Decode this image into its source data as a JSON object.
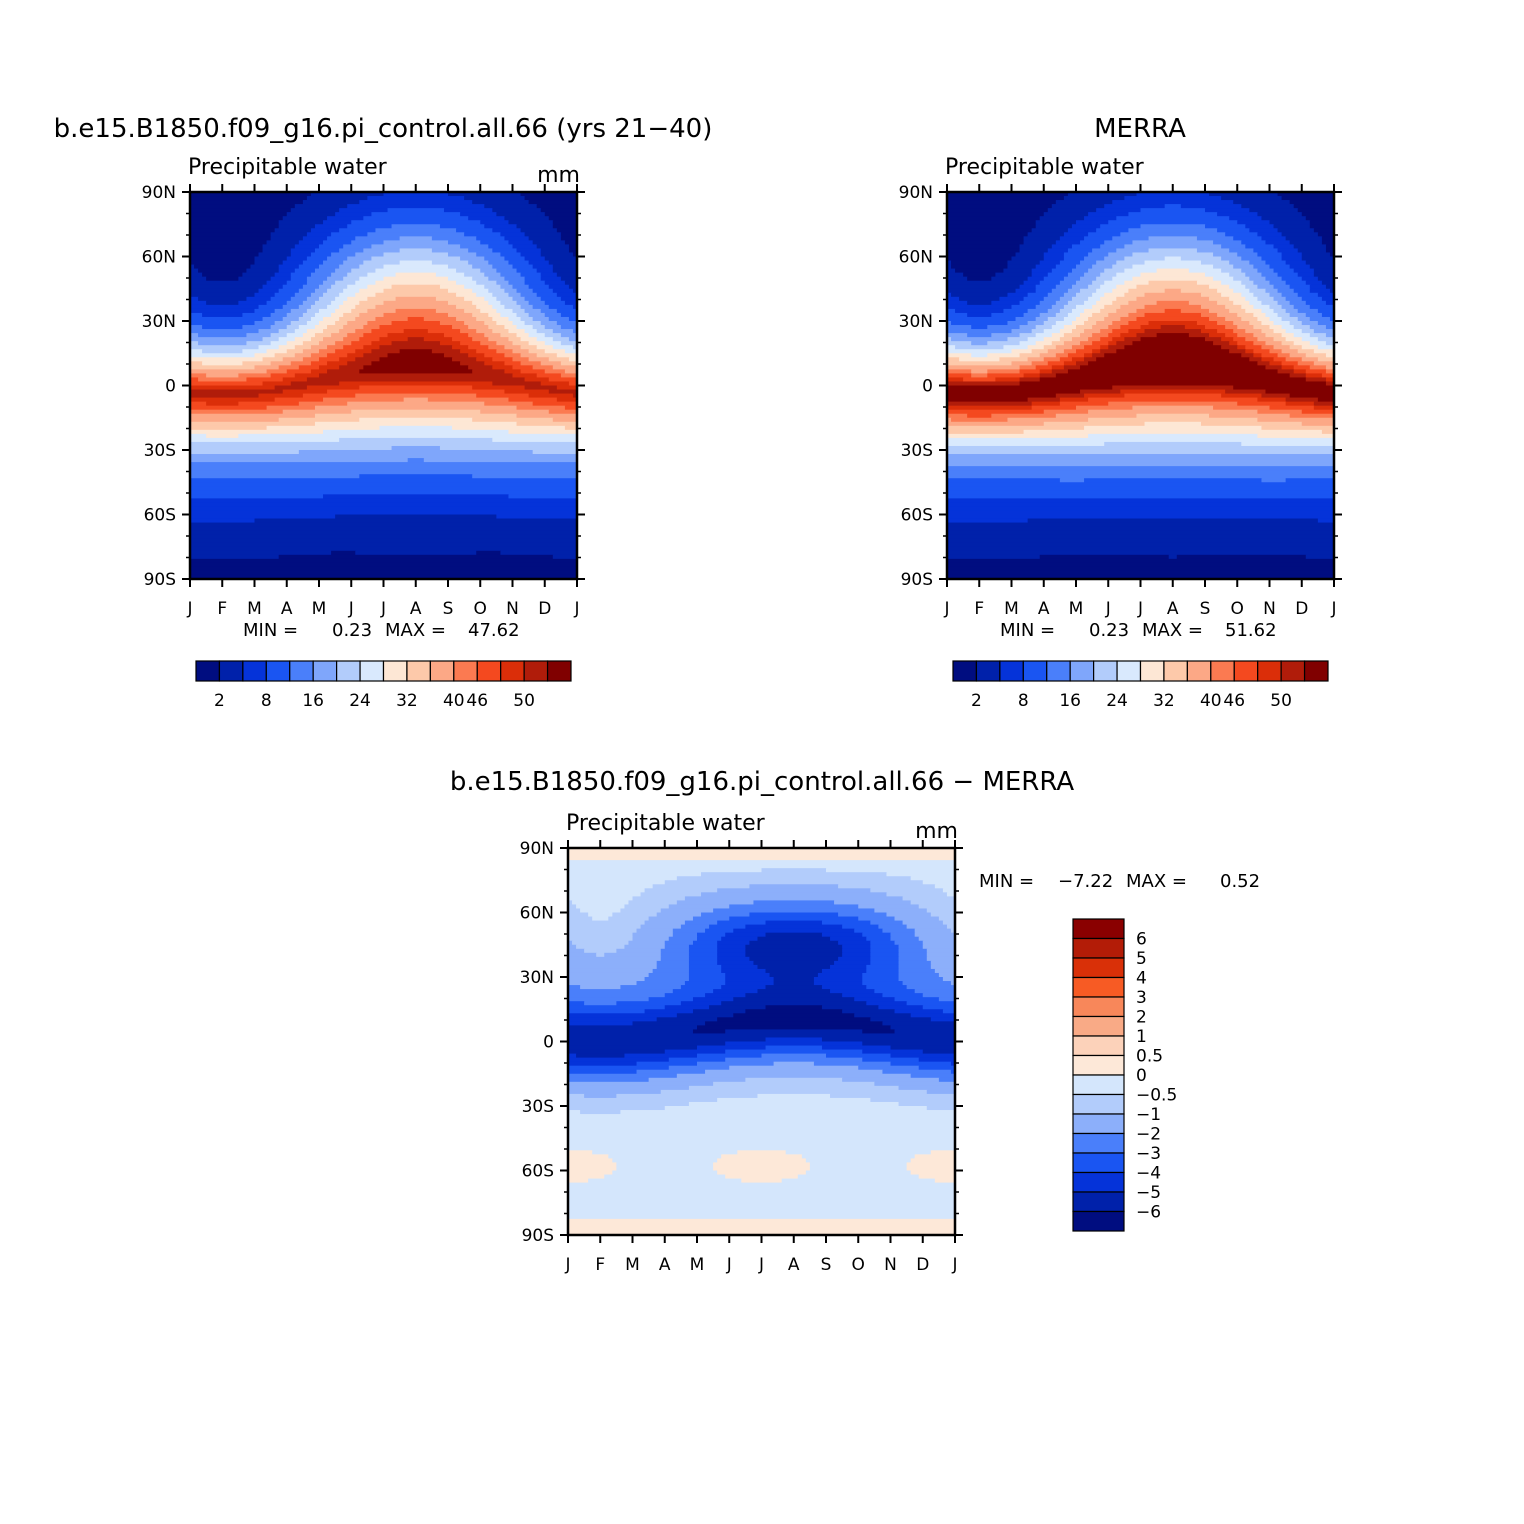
{
  "chart_data": [
    {
      "type": "heatmap",
      "title": "b.e15.B1850.f09_g16.pi_control.all.66 (yrs 21−40)",
      "subtitle": "Precipitable water",
      "units": "mm",
      "x_ticks": [
        "J",
        "F",
        "M",
        "A",
        "M",
        "J",
        "J",
        "A",
        "S",
        "O",
        "N",
        "D",
        "J"
      ],
      "y_ticks": [
        "90N",
        "60N",
        "30N",
        "0",
        "30S",
        "60S",
        "90S"
      ],
      "min_label": "MIN =",
      "min_value": "0.23",
      "max_label": "MAX =",
      "max_value": "47.62",
      "min": 0.23,
      "max": 47.62,
      "colorbar_labels": [
        "2",
        "8",
        "16",
        "24",
        "32",
        "40",
        "46",
        "50"
      ]
    },
    {
      "type": "heatmap",
      "title": "MERRA",
      "subtitle": "Precipitable water",
      "units": "",
      "x_ticks": [
        "J",
        "F",
        "M",
        "A",
        "M",
        "J",
        "J",
        "A",
        "S",
        "O",
        "N",
        "D",
        "J"
      ],
      "y_ticks": [
        "90N",
        "60N",
        "30N",
        "0",
        "30S",
        "60S",
        "90S"
      ],
      "min_label": "MIN =",
      "min_value": "0.23",
      "max_label": "MAX =",
      "max_value": "51.62",
      "min": 0.23,
      "max": 51.62,
      "colorbar_labels": [
        "2",
        "8",
        "16",
        "24",
        "32",
        "40",
        "46",
        "50"
      ]
    },
    {
      "type": "heatmap",
      "title": "b.e15.B1850.f09_g16.pi_control.all.66 − MERRA",
      "subtitle": "Precipitable water",
      "units": "mm",
      "x_ticks": [
        "J",
        "F",
        "M",
        "A",
        "M",
        "J",
        "J",
        "A",
        "S",
        "O",
        "N",
        "D",
        "J"
      ],
      "y_ticks": [
        "90N",
        "60N",
        "30N",
        "0",
        "30S",
        "60S",
        "90S"
      ],
      "min_label": "MIN =",
      "min_value": "−7.22",
      "max_label": "MAX =",
      "max_value": "0.52",
      "min": -7.22,
      "max": 0.52,
      "colorbar_labels": [
        "6",
        "5",
        "4",
        "3",
        "2",
        "1",
        "0.5",
        "0",
        "−0.5",
        "−1",
        "−2",
        "−3",
        "−4",
        "−5",
        "−6"
      ]
    }
  ],
  "colors": {
    "abs_levels": [
      "#000d80",
      "#0021aa",
      "#0533d9",
      "#1a55f2",
      "#4a7ffa",
      "#7fa6fb",
      "#b2ccfb",
      "#d9e9fd",
      "#fde7d5",
      "#fdc9aa",
      "#fca886",
      "#fb7a51",
      "#f4491f",
      "#db2e09",
      "#b01c0a",
      "#800000"
    ],
    "diff_levels": [
      "#8a0000",
      "#b31c07",
      "#d93008",
      "#f75b24",
      "#f8875a",
      "#f9aa86",
      "#fcd2ba",
      "#fde8d8",
      "#d4e6fc",
      "#b2ccfb",
      "#8caffa",
      "#4a7ffa",
      "#1a55f2",
      "#0533d9",
      "#0021aa",
      "#000d80"
    ]
  }
}
